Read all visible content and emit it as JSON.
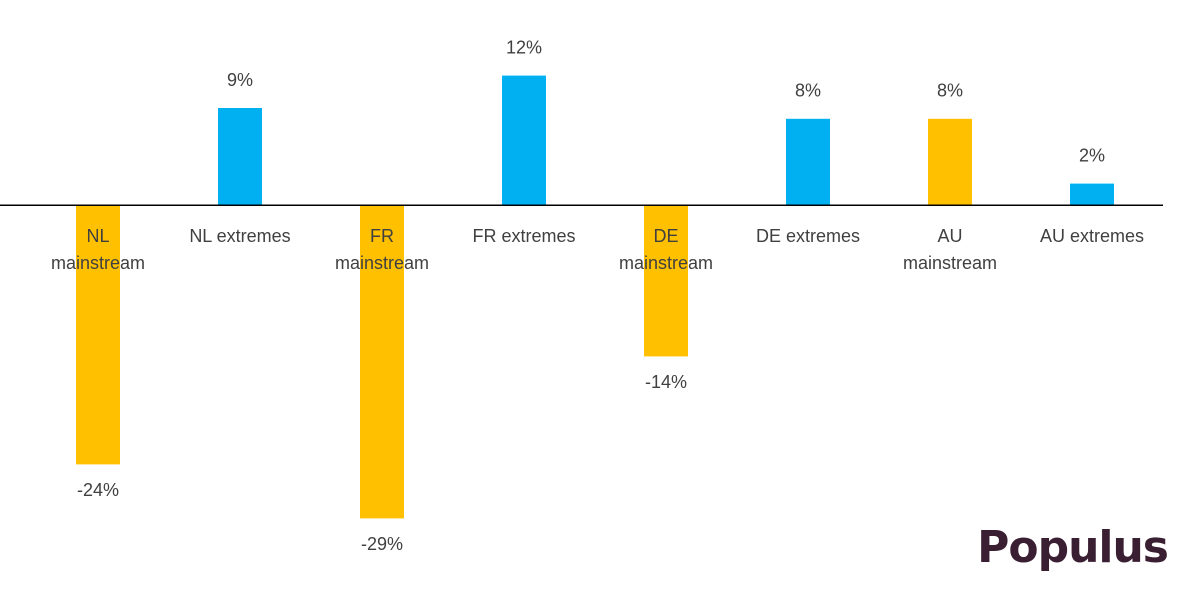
{
  "chart_data": {
    "type": "bar",
    "categories": [
      "NL\nmainstream",
      "NL extremes",
      "FR\nmainstream",
      "FR extremes",
      "DE\nmainstream",
      "DE extremes",
      "AU\nmainstream",
      "AU extremes"
    ],
    "values": [
      -24,
      9,
      -29,
      12,
      -14,
      8,
      8,
      2
    ],
    "value_labels": [
      "-24%",
      "9%",
      "-29%",
      "12%",
      "-14%",
      "8%",
      "8%",
      "2%"
    ],
    "colors": [
      "#ffc000",
      "#00b0f0",
      "#ffc000",
      "#00b0f0",
      "#ffc000",
      "#00b0f0",
      "#ffc000",
      "#00b0f0"
    ],
    "ylim": [
      -31,
      14
    ]
  },
  "logo": "Populus"
}
